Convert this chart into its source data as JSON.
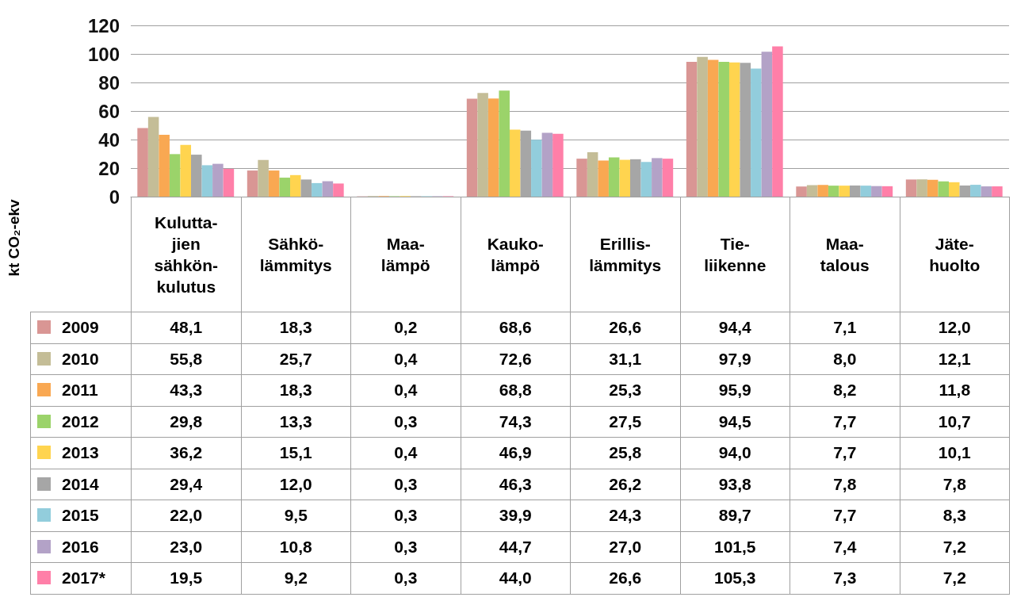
{
  "chart_data": {
    "type": "bar",
    "ylabel": "kt CO₂-ekv",
    "categories": [
      "Kulutta-\njien\nsähkön-\nkulutus",
      "Sähkö-\nlämmitys",
      "Maa-\nlämpö",
      "Kauko-\nlämpö",
      "Erillis-\nlämmitys",
      "Tie-\nliikenne",
      "Maa-\ntalous",
      "Jäte-\nhuolto"
    ],
    "series": [
      {
        "name": "2009",
        "color": "#d99694",
        "values": [
          48.1,
          18.3,
          0.2,
          68.6,
          26.6,
          94.4,
          7.1,
          12.0
        ],
        "value_labels": [
          "48,1",
          "18,3",
          "0,2",
          "68,6",
          "26,6",
          "94,4",
          "7,1",
          "12,0"
        ]
      },
      {
        "name": "2010",
        "color": "#c4bd97",
        "values": [
          55.8,
          25.7,
          0.4,
          72.6,
          31.1,
          97.9,
          8.0,
          12.1
        ],
        "value_labels": [
          "55,8",
          "25,7",
          "0,4",
          "72,6",
          "31,1",
          "97,9",
          "8,0",
          "12,1"
        ]
      },
      {
        "name": "2011",
        "color": "#f9a852",
        "values": [
          43.3,
          18.3,
          0.4,
          68.8,
          25.3,
          95.9,
          8.2,
          11.8
        ],
        "value_labels": [
          "43,3",
          "18,3",
          "0,4",
          "68,8",
          "25,3",
          "95,9",
          "8,2",
          "11,8"
        ]
      },
      {
        "name": "2012",
        "color": "#9bd36a",
        "values": [
          29.8,
          13.3,
          0.3,
          74.3,
          27.5,
          94.5,
          7.7,
          10.7
        ],
        "value_labels": [
          "29,8",
          "13,3",
          "0,3",
          "74,3",
          "27,5",
          "94,5",
          "7,7",
          "10,7"
        ]
      },
      {
        "name": "2013",
        "color": "#ffd44f",
        "values": [
          36.2,
          15.1,
          0.4,
          46.9,
          25.8,
          94.0,
          7.7,
          10.1
        ],
        "value_labels": [
          "36,2",
          "15,1",
          "0,4",
          "46,9",
          "25,8",
          "94,0",
          "7,7",
          "10,1"
        ]
      },
      {
        "name": "2014",
        "color": "#a6a6a6",
        "values": [
          29.4,
          12.0,
          0.3,
          46.3,
          26.2,
          93.8,
          7.8,
          7.8
        ],
        "value_labels": [
          "29,4",
          "12,0",
          "0,3",
          "46,3",
          "26,2",
          "93,8",
          "7,8",
          "7,8"
        ]
      },
      {
        "name": "2015",
        "color": "#92cddc",
        "values": [
          22.0,
          9.5,
          0.3,
          39.9,
          24.3,
          89.7,
          7.7,
          8.3
        ],
        "value_labels": [
          "22,0",
          "9,5",
          "0,3",
          "39,9",
          "24,3",
          "89,7",
          "7,7",
          "8,3"
        ]
      },
      {
        "name": "2016",
        "color": "#b3a2c7",
        "values": [
          23.0,
          10.8,
          0.3,
          44.7,
          27.0,
          101.5,
          7.4,
          7.2
        ],
        "value_labels": [
          "23,0",
          "10,8",
          "0,3",
          "44,7",
          "27,0",
          "101,5",
          "7,4",
          "7,2"
        ]
      },
      {
        "name": "2017*",
        "color": "#ff7fa8",
        "values": [
          19.5,
          9.2,
          0.3,
          44.0,
          26.6,
          105.3,
          7.3,
          7.2
        ],
        "value_labels": [
          "19,5",
          "9,2",
          "0,3",
          "44,0",
          "26,6",
          "105,3",
          "7,3",
          "7,2"
        ]
      }
    ],
    "ylim": [
      0,
      120
    ],
    "yticks": [
      0,
      20,
      40,
      60,
      80,
      100,
      120
    ],
    "grid": "y",
    "legend": "bottom left"
  }
}
